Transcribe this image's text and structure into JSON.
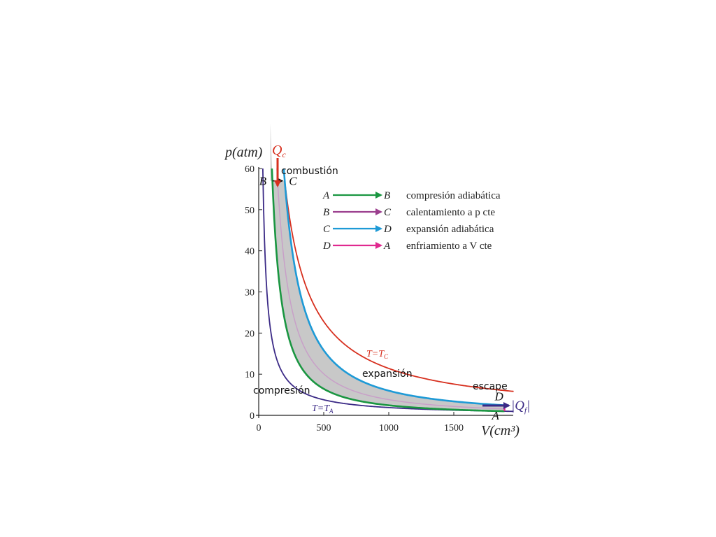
{
  "chart_data": {
    "type": "line",
    "ylabel": "p(atm)",
    "xlabel": "V(cm³)",
    "xlim": [
      0,
      2000
    ],
    "ylim": [
      0,
      60
    ],
    "x_ticks": [
      0,
      500,
      1000,
      1500
    ],
    "y_ticks": [
      0,
      10,
      20,
      30,
      40,
      50,
      60
    ],
    "points": {
      "A": {
        "label": "A",
        "V": 1890,
        "p": 1
      },
      "B": {
        "label": "B",
        "V": 90,
        "p": 57
      },
      "C": {
        "label": "C",
        "V": 200,
        "p": 57
      },
      "D": {
        "label": "D",
        "V": 1890,
        "p": 3
      }
    },
    "legend": [
      {
        "from": "A",
        "to": "B",
        "text": "compresión adiabática",
        "color": "#1a9641"
      },
      {
        "from": "B",
        "to": "C",
        "text": "calentamiento a p cte",
        "color": "#9b3f8e"
      },
      {
        "from": "C",
        "to": "D",
        "text": "expansión adiabática",
        "color": "#1e9ad6"
      },
      {
        "from": "D",
        "to": "A",
        "text": "enfriamiento a V cte",
        "color": "#e0298f"
      }
    ],
    "isotherms": [
      {
        "name": "T=TC",
        "label": "T=T",
        "sub": "C",
        "color": "#d7301f",
        "pV": 11400
      },
      {
        "name": "T=TA",
        "label": "T=T",
        "sub": "A",
        "color": "#3b2a86",
        "pV": 1890
      }
    ],
    "adiabats": {
      "gamma": 1.4
    },
    "annotations": {
      "combustion": "combustión",
      "expansion": "expansión",
      "compression": "compresión",
      "escape": "escape",
      "qc_label": "Q",
      "qc_sub": "c",
      "qf_label": "|Q",
      "qf_sub": "f",
      "qf_bar": "|"
    },
    "colors": {
      "fill": "#c8c8c8",
      "qc_arrow": "#d7301f",
      "qf_arrow": "#3b2a86",
      "mid_curve": "#c8a0c8"
    }
  }
}
